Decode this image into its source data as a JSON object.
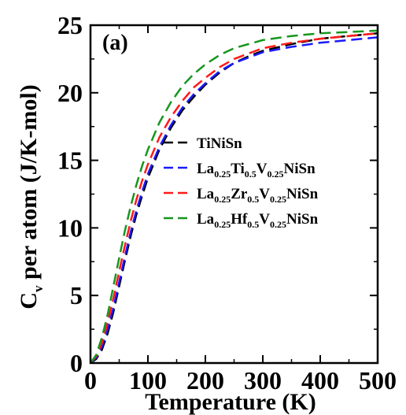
{
  "chart_data": {
    "type": "line",
    "panel_label": "(a)",
    "xlabel": "Temperature (K)",
    "ylabel": {
      "main": "C",
      "sub": "v",
      "rest": " per atom (J/K-mol)"
    },
    "xlim": [
      0,
      500
    ],
    "ylim": [
      0,
      25
    ],
    "xticks": [
      0,
      100,
      200,
      300,
      400,
      500
    ],
    "yticks": [
      0,
      5,
      10,
      15,
      20,
      25
    ],
    "grid": false,
    "legend_position": "center-right",
    "series": [
      {
        "name": "TiNiSn",
        "name_parts": [
          [
            "TiNiSn",
            false
          ]
        ],
        "color": "#000000",
        "x": [
          0,
          10,
          20,
          30,
          40,
          50,
          60,
          70,
          80,
          90,
          100,
          120,
          140,
          160,
          180,
          200,
          225,
          250,
          275,
          300,
          350,
          400,
          450,
          500
        ],
        "y": [
          0,
          0.3,
          1.0,
          2.2,
          3.8,
          5.7,
          7.6,
          9.4,
          11.0,
          12.4,
          13.7,
          15.8,
          17.4,
          18.7,
          19.7,
          20.6,
          21.5,
          22.2,
          22.7,
          23.1,
          23.6,
          24.0,
          24.2,
          24.4
        ]
      },
      {
        "name": "La0.25Ti0.5V0.25NiSn",
        "name_parts": [
          [
            "La",
            false
          ],
          [
            "0.25",
            true
          ],
          [
            "Ti",
            false
          ],
          [
            "0.5",
            true
          ],
          [
            "V",
            false
          ],
          [
            "0.25",
            true
          ],
          [
            "NiSn",
            false
          ]
        ],
        "color": "#1a1aff",
        "x": [
          0,
          10,
          20,
          30,
          40,
          50,
          60,
          70,
          80,
          90,
          100,
          120,
          140,
          160,
          180,
          200,
          225,
          250,
          275,
          300,
          350,
          400,
          450,
          500
        ],
        "y": [
          0,
          0.4,
          1.2,
          2.5,
          4.1,
          6.0,
          7.9,
          9.7,
          11.3,
          12.7,
          14.0,
          16.0,
          17.6,
          18.9,
          19.9,
          20.7,
          21.6,
          22.2,
          22.6,
          23.0,
          23.4,
          23.7,
          23.9,
          24.1
        ]
      },
      {
        "name": "La0.25Zr0.5V0.25NiSn",
        "name_parts": [
          [
            "La",
            false
          ],
          [
            "0.25",
            true
          ],
          [
            "Zr",
            false
          ],
          [
            "0.5",
            true
          ],
          [
            "V",
            false
          ],
          [
            "0.25",
            true
          ],
          [
            "NiSn",
            false
          ]
        ],
        "color": "#ff1a1a",
        "x": [
          0,
          10,
          20,
          30,
          40,
          50,
          60,
          70,
          80,
          90,
          100,
          120,
          140,
          160,
          180,
          200,
          225,
          250,
          275,
          300,
          350,
          400,
          450,
          500
        ],
        "y": [
          0,
          0.5,
          1.5,
          3.0,
          4.8,
          6.8,
          8.7,
          10.5,
          12.1,
          13.5,
          14.7,
          16.7,
          18.2,
          19.4,
          20.4,
          21.1,
          21.9,
          22.5,
          22.9,
          23.3,
          23.7,
          24.0,
          24.2,
          24.4
        ]
      },
      {
        "name": "La0.25Hf0.5V0.25NiSn",
        "name_parts": [
          [
            "La",
            false
          ],
          [
            "0.25",
            true
          ],
          [
            "Hf",
            false
          ],
          [
            "0.5",
            true
          ],
          [
            "V",
            false
          ],
          [
            "0.25",
            true
          ],
          [
            "NiSn",
            false
          ]
        ],
        "color": "#16961e",
        "x": [
          0,
          10,
          20,
          30,
          40,
          50,
          60,
          70,
          80,
          90,
          100,
          120,
          140,
          160,
          180,
          200,
          225,
          250,
          275,
          300,
          350,
          400,
          450,
          500
        ],
        "y": [
          0,
          0.6,
          1.9,
          3.6,
          5.7,
          7.8,
          9.8,
          11.6,
          13.2,
          14.6,
          15.8,
          17.8,
          19.3,
          20.5,
          21.4,
          22.1,
          22.8,
          23.3,
          23.6,
          23.9,
          24.2,
          24.4,
          24.5,
          24.6
        ]
      }
    ]
  }
}
